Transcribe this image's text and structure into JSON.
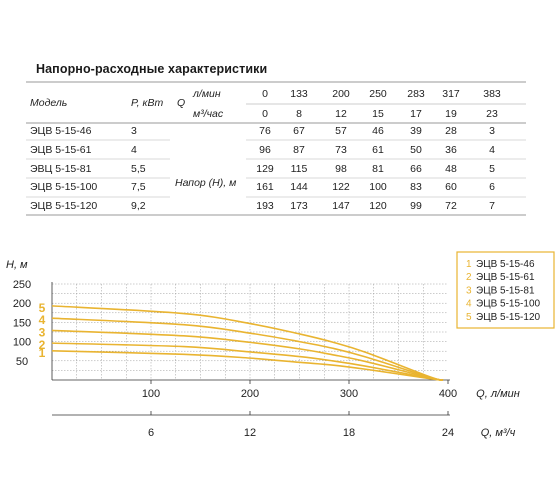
{
  "table": {
    "title": "Напорно-расходные характеристики",
    "header": {
      "model": "Модель",
      "power": "P, кВт",
      "q": "Q",
      "unit_lmin": "л/мин",
      "unit_m3h": "м³/час",
      "flow_lmin": [
        "0",
        "133",
        "200",
        "250",
        "283",
        "317",
        "383"
      ],
      "flow_m3h": [
        "0",
        "8",
        "12",
        "15",
        "17",
        "19",
        "23"
      ]
    },
    "head_label": "Напор (Н), м",
    "rows": [
      {
        "model": "ЭЦВ 5-15-46",
        "power": "3",
        "values": [
          "76",
          "67",
          "57",
          "46",
          "39",
          "28",
          "3"
        ]
      },
      {
        "model": "ЭЦВ 5-15-61",
        "power": "4",
        "values": [
          "96",
          "87",
          "73",
          "61",
          "50",
          "36",
          "4"
        ]
      },
      {
        "model": "ЭВЦ 5-15-81",
        "power": "5,5",
        "values": [
          "129",
          "115",
          "98",
          "81",
          "66",
          "48",
          "5"
        ]
      },
      {
        "model": "ЭЦВ 5-15-100",
        "power": "7,5",
        "values": [
          "161",
          "144",
          "122",
          "100",
          "83",
          "60",
          "6"
        ]
      },
      {
        "model": "ЭЦВ 5-15-120",
        "power": "9,2",
        "values": [
          "193",
          "173",
          "147",
          "120",
          "99",
          "72",
          "7"
        ]
      }
    ]
  },
  "chart_data": {
    "type": "line",
    "ylabel": "Н, м",
    "xlabel": "Q, л/мин",
    "x2label": "Q, м³/ч",
    "ylim": [
      0,
      250
    ],
    "xlim": [
      0,
      400
    ],
    "yticks": [
      50,
      100,
      150,
      200,
      250
    ],
    "xticks": [
      100,
      200,
      300,
      400
    ],
    "x2ticks": [
      6,
      12,
      18,
      24
    ],
    "grid": true,
    "legend_position": "top-right",
    "line_color": "#e9b431",
    "x": [
      0,
      133,
      200,
      250,
      283,
      317,
      383
    ],
    "series": [
      {
        "label": "1",
        "name": "ЭЦВ 5-15-46",
        "values": [
          76,
          67,
          57,
          46,
          39,
          28,
          3
        ]
      },
      {
        "label": "2",
        "name": "ЭЦВ 5-15-61",
        "values": [
          96,
          87,
          73,
          61,
          50,
          36,
          4
        ]
      },
      {
        "label": "3",
        "name": "ЭЦВ 5-15-81",
        "values": [
          129,
          115,
          98,
          81,
          66,
          48,
          5
        ]
      },
      {
        "label": "4",
        "name": "ЭЦВ 5-15-100",
        "values": [
          161,
          144,
          122,
          100,
          83,
          60,
          6
        ]
      },
      {
        "label": "5",
        "name": "ЭЦВ 5-15-120",
        "values": [
          193,
          173,
          147,
          120,
          99,
          72,
          7
        ]
      }
    ]
  }
}
